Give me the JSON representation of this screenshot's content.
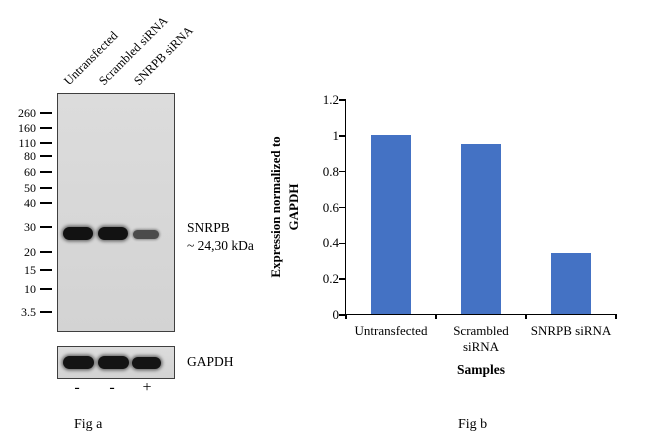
{
  "figure": {
    "fig_a_caption": "Fig a",
    "fig_b_caption": "Fig b"
  },
  "fig_a": {
    "lane_labels": [
      "Untransfected",
      "Scrambled siRNA",
      "SNRPB siRNA"
    ],
    "mw_markers": [
      "260",
      "160",
      "110",
      "80",
      "60",
      "50",
      "40",
      "30",
      "20",
      "15",
      "10",
      "3.5"
    ],
    "band_label_line1": "SNRPB",
    "band_label_line2": "~ 24,30 kDa",
    "loading_control_label": "GAPDH",
    "lane_signs": [
      "-",
      "-",
      "+"
    ]
  },
  "chart_data": {
    "type": "bar",
    "categories": [
      "Untransfected",
      "Scrambled siRNA",
      "SNRPB siRNA"
    ],
    "values": [
      1.0,
      0.95,
      0.34
    ],
    "title": "",
    "xlabel": "Samples",
    "ylabel": "Expression normalized to GAPDH",
    "ylim": [
      0,
      1.2
    ],
    "yticks": [
      0,
      0.2,
      0.4,
      0.6,
      0.8,
      1,
      1.2
    ],
    "bar_color": "#4472C4",
    "grid": false,
    "legend": false
  }
}
